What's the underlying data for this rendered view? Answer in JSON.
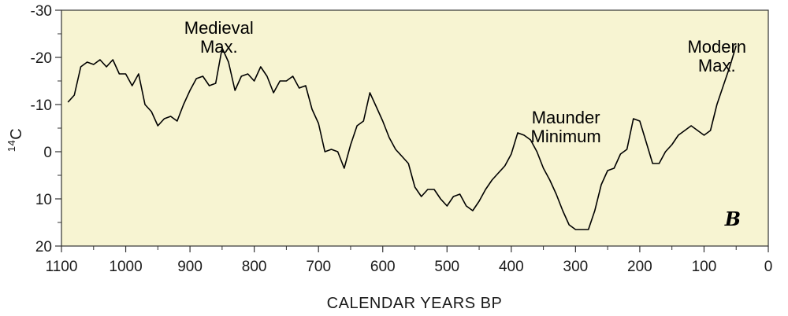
{
  "chart_data": {
    "type": "line",
    "title": "",
    "panel_label": "B",
    "xlabel": "CALENDAR YEARS BP",
    "ylabel_sup": "14",
    "ylabel_base": "C",
    "xlim": [
      1100,
      0
    ],
    "ylim": [
      20,
      -30
    ],
    "x_reversed": true,
    "y_reversed": true,
    "x_ticks": [
      1100,
      1000,
      900,
      800,
      700,
      600,
      500,
      400,
      300,
      200,
      100,
      0
    ],
    "x_tick_labels": [
      "1100",
      "1000",
      "900",
      "800",
      "700",
      "600",
      "500",
      "400",
      "300",
      "200",
      "100",
      "0"
    ],
    "y_ticks": [
      -30,
      -20,
      -10,
      0,
      10,
      20
    ],
    "y_tick_labels": [
      "-30",
      "-20",
      "-10",
      "0",
      "10",
      "20"
    ],
    "grid": false,
    "background_color": "#f7f4d2",
    "line_color": "#000000",
    "annotations": [
      {
        "lines": [
          "Medieval",
          "Max."
        ],
        "x": 855,
        "y": -25
      },
      {
        "lines": [
          "Maunder",
          "Minimum"
        ],
        "x": 315,
        "y": -6
      },
      {
        "lines": [
          "Modern",
          "Max."
        ],
        "x": 80,
        "y": -21
      }
    ],
    "series": [
      {
        "x": [
          1090,
          1080,
          1070,
          1060,
          1050,
          1040,
          1030,
          1020,
          1010,
          1000,
          990,
          980,
          970,
          960,
          950,
          940,
          930,
          920,
          910,
          900,
          890,
          880,
          870,
          860,
          850,
          840,
          830,
          820,
          810,
          800,
          790,
          780,
          770,
          760,
          750,
          740,
          730,
          720,
          710,
          700,
          690,
          680,
          670,
          660,
          650,
          640,
          630,
          620,
          610,
          600,
          590,
          580,
          570,
          560,
          550,
          540,
          530,
          520,
          510,
          500,
          490,
          480,
          470,
          460,
          450,
          440,
          430,
          420,
          410,
          400,
          390,
          380,
          370,
          360,
          350,
          340,
          330,
          320,
          310,
          300,
          290,
          280,
          270,
          260,
          250,
          240,
          230,
          220,
          210,
          200,
          190,
          180,
          170,
          160,
          150,
          140,
          130,
          120,
          110,
          100,
          90,
          80,
          70,
          60,
          50
        ],
        "y": [
          -10.5,
          -12,
          -18,
          -19,
          -18.5,
          -19.5,
          -18,
          -19.5,
          -16.5,
          -16.5,
          -14,
          -16.5,
          -10,
          -8.5,
          -5.5,
          -7,
          -7.5,
          -6.5,
          -10,
          -13,
          -15.5,
          -16,
          -14,
          -14.5,
          -22,
          -19,
          -13,
          -16,
          -16.5,
          -15,
          -18,
          -16,
          -12.5,
          -15,
          -15,
          -16,
          -13.5,
          -14,
          -9,
          -6,
          0,
          -0.5,
          0,
          3.5,
          -1.5,
          -5.5,
          -6.5,
          -12.5,
          -9.5,
          -6.5,
          -3,
          -0.5,
          1,
          2.5,
          7.5,
          9.5,
          8,
          8,
          10,
          11.5,
          9.5,
          9,
          11.5,
          12.5,
          10.5,
          8,
          6,
          4.5,
          3,
          0.5,
          -4,
          -3.5,
          -2.5,
          0,
          3.5,
          6,
          9,
          12.5,
          15.5,
          16.5,
          16.5,
          16.5,
          12.5,
          7,
          4,
          3.5,
          0.5,
          -0.5,
          -7,
          -6.5,
          -2,
          2.5,
          2.5,
          0,
          -1.5,
          -3.5,
          -4.5,
          -5.5,
          -4.5,
          -3.5,
          -4.5,
          -10,
          -14,
          -18,
          -22.5
        ]
      }
    ]
  }
}
